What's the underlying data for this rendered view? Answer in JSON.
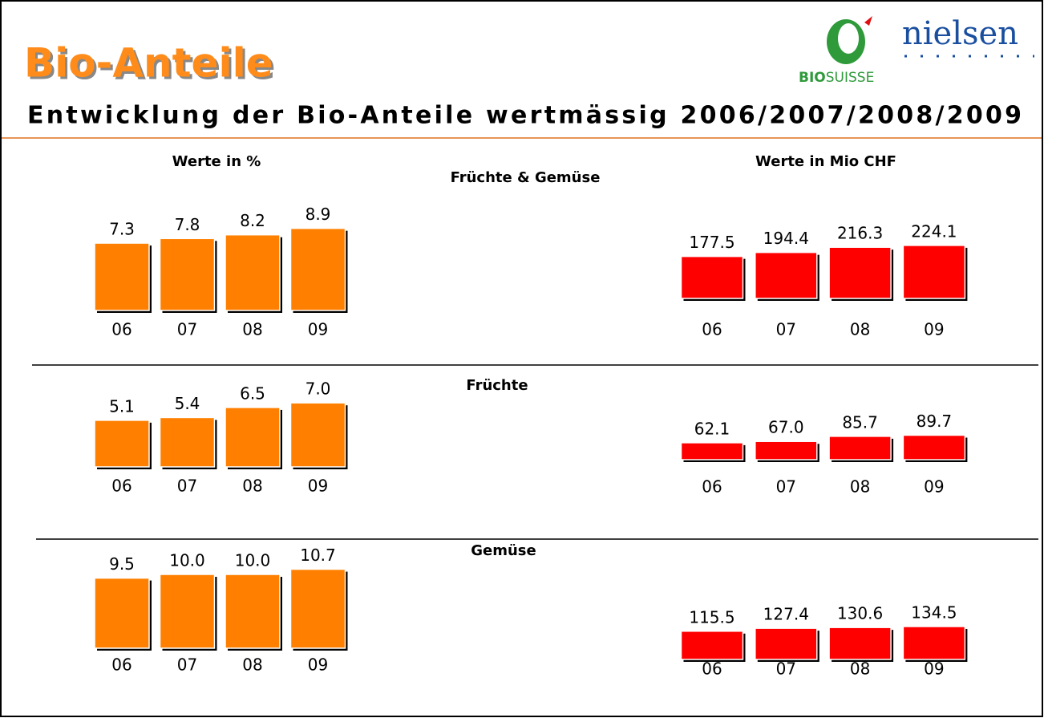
{
  "title": "Bio-Anteile",
  "subtitle": "Entwicklung der Bio-Anteile wertmässig 2006/2007/2008/2009",
  "logos": {
    "biosuisse_bold": "BIO",
    "biosuisse_rest": "SUISSE",
    "nielsen": "nielsen"
  },
  "column_headers": [
    "Werte in %",
    "Werte in Mio CHF"
  ],
  "sections": [
    "Früchte & Gemüse",
    "Früchte",
    "Gemüse"
  ],
  "chart_data": [
    {
      "type": "bar",
      "categories": [
        "06",
        "07",
        "08",
        "09"
      ],
      "values": [
        7.3,
        7.8,
        8.2,
        8.9
      ],
      "color": "#ff8000"
    },
    {
      "type": "bar",
      "categories": [
        "06",
        "07",
        "08",
        "09"
      ],
      "values": [
        177.5,
        194.4,
        216.3,
        224.1
      ],
      "color": "#ff0000"
    },
    {
      "type": "bar",
      "categories": [
        "06",
        "07",
        "08",
        "09"
      ],
      "values": [
        5.1,
        5.4,
        6.5,
        7.0
      ],
      "value_labels": [
        "5.1",
        "5.4",
        "6.5",
        "7.0"
      ],
      "color": "#ff8000"
    },
    {
      "type": "bar",
      "categories": [
        "06",
        "07",
        "08",
        "09"
      ],
      "values": [
        62.1,
        67.0,
        85.7,
        89.7
      ],
      "value_labels": [
        "62.1",
        "67.0",
        "85.7",
        "89.7"
      ],
      "color": "#ff0000"
    },
    {
      "type": "bar",
      "categories": [
        "06",
        "07",
        "08",
        "09"
      ],
      "values": [
        9.5,
        10.0,
        10.0,
        10.7
      ],
      "value_labels": [
        "9.5",
        "10.0",
        "10.0",
        "10.7"
      ],
      "color": "#ff8000"
    },
    {
      "type": "bar",
      "categories": [
        "06",
        "07",
        "08",
        "09"
      ],
      "values": [
        115.5,
        127.4,
        130.6,
        134.5
      ],
      "color": "#ff0000"
    }
  ]
}
